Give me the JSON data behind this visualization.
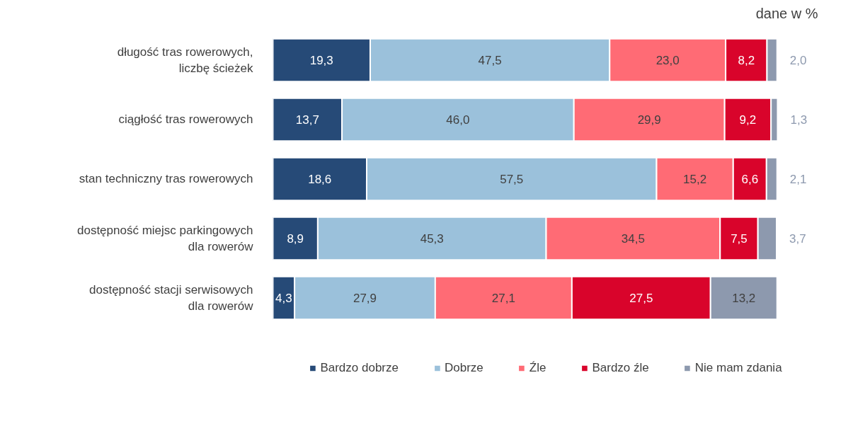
{
  "chart_data": {
    "type": "bar",
    "orientation": "horizontal",
    "stacked": true,
    "categories": [
      "długość tras rowerowych,\nliczbę ścieżek",
      "ciągłość tras rowerowych",
      "stan techniczny tras rowerowych",
      "dostępność miejsc parkingowych\ndla rowerów",
      "dostępność stacji serwisowych\ndla rowerów"
    ],
    "series": [
      {
        "name": "Bardzo dobrze",
        "color": "#264a77",
        "values": [
          19.3,
          13.7,
          18.6,
          8.9,
          4.3
        ],
        "value_labels": [
          "19,3",
          "13,7",
          "18,6",
          "8,9",
          "4,3"
        ]
      },
      {
        "name": "Dobrze",
        "color": "#9bc1db",
        "values": [
          47.5,
          46.0,
          57.5,
          45.3,
          27.9
        ],
        "value_labels": [
          "47,5",
          "46,0",
          "57,5",
          "45,3",
          "27,9"
        ]
      },
      {
        "name": "Źle",
        "color": "#ff6b75",
        "values": [
          23.0,
          29.9,
          15.2,
          34.5,
          27.1
        ],
        "value_labels": [
          "23,0",
          "29,9",
          "15,2",
          "34,5",
          "27,1"
        ]
      },
      {
        "name": "Bardzo źle",
        "color": "#d9042b",
        "values": [
          8.2,
          9.2,
          6.6,
          7.5,
          27.5
        ],
        "value_labels": [
          "8,2",
          "9,2",
          "6,6",
          "7,5",
          "27,5"
        ]
      },
      {
        "name": "Nie mam zdania",
        "color": "#8d99ae",
        "values": [
          2.0,
          1.3,
          2.1,
          3.7,
          13.2
        ],
        "value_labels": [
          "2,0",
          "1,3",
          "2,1",
          "3,7",
          "13,2"
        ]
      }
    ],
    "tick_labels": "y",
    "grid": false,
    "legend": "bottom",
    "annotations": [
      "dane w %"
    ]
  }
}
